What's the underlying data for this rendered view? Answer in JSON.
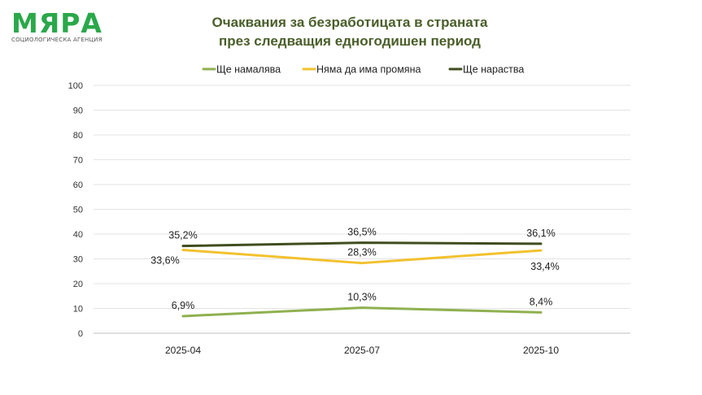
{
  "logo": {
    "word": "МЯРА",
    "subtitle": "СОЦИОЛОГИЧЕСКА АГЕНЦИЯ"
  },
  "title": {
    "line1": "Очаквания за безработицата в страната",
    "line2": "през следващия едногодишен период"
  },
  "chart_data": {
    "type": "line",
    "title": "Очаквания за безработицата в страната през следващия едногодишен период",
    "categories": [
      "2025-04",
      "2025-07",
      "2025-10"
    ],
    "ylim": [
      0,
      100
    ],
    "yticks": [
      0,
      10,
      20,
      30,
      40,
      50,
      60,
      70,
      80,
      90,
      100
    ],
    "grid": true,
    "legend_position": "top",
    "series": [
      {
        "name": "Ще намалява",
        "color": "#8fb04f",
        "values": [
          6.9,
          10.3,
          8.4
        ],
        "labels": [
          "6,9%",
          "10,3%",
          "8,4%"
        ],
        "label_pos": [
          "above",
          "above",
          "above"
        ]
      },
      {
        "name": "Няма да има промяна",
        "color": "#f2c12e",
        "values": [
          33.6,
          28.3,
          33.4
        ],
        "labels": [
          "33,6%",
          "28,3%",
          "33,4%"
        ],
        "label_pos": [
          "below-left",
          "above",
          "below-right"
        ]
      },
      {
        "name": "Ще нараства",
        "color": "#3f4d1e",
        "values": [
          35.2,
          36.5,
          36.1
        ],
        "labels": [
          "35,2%",
          "36,5%",
          "36,1%"
        ],
        "label_pos": [
          "above",
          "above",
          "above"
        ]
      }
    ]
  }
}
